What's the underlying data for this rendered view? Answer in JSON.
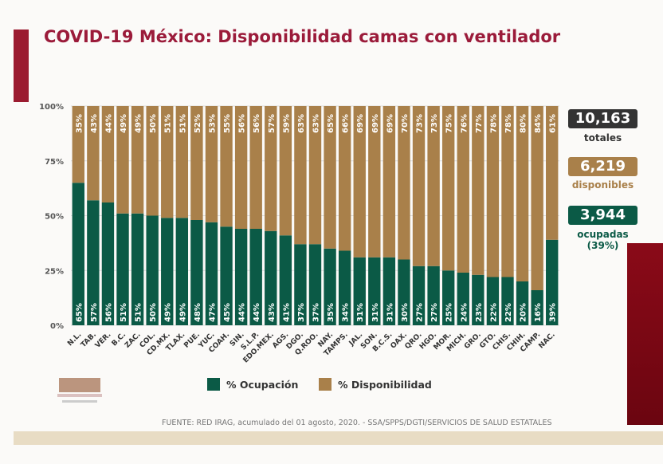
{
  "title": "COVID-19 México: Disponibilidad camas con ventilador",
  "chart_data": {
    "type": "bar",
    "stacked": true,
    "percent": true,
    "categories": [
      "N.L.",
      "TAB.",
      "VER.",
      "B.C.",
      "ZAC.",
      "COL.",
      "CD.MX.",
      "TLAX.",
      "PUE.",
      "YUC.",
      "COAH.",
      "SIN.",
      "S.L.P.",
      "EDO.MEX.",
      "AGS.",
      "DGO.",
      "Q.ROO.",
      "NAY.",
      "TAMPS.",
      "JAL.",
      "SON.",
      "B.C.S.",
      "OAX.",
      "QRO.",
      "HGO.",
      "MOR.",
      "MICH.",
      "GRO.",
      "GTO.",
      "CHIS.",
      "CHIH.",
      "CAMP.",
      "NAC."
    ],
    "series": [
      {
        "name": "% Ocupación",
        "color": "#0b5a46",
        "values": [
          65,
          57,
          56,
          51,
          51,
          50,
          49,
          49,
          48,
          47,
          45,
          44,
          44,
          43,
          41,
          37,
          37,
          35,
          34,
          31,
          31,
          31,
          30,
          27,
          27,
          25,
          24,
          23,
          22,
          22,
          20,
          16,
          39
        ]
      },
      {
        "name": "% Disponibilidad",
        "color": "#a9804a",
        "values": [
          35,
          43,
          44,
          49,
          49,
          50,
          51,
          51,
          52,
          53,
          55,
          56,
          56,
          57,
          59,
          63,
          63,
          65,
          66,
          69,
          69,
          69,
          70,
          73,
          73,
          75,
          76,
          77,
          78,
          78,
          80,
          84,
          61
        ]
      }
    ],
    "yticks": [
      "0%",
      "25%",
      "50%",
      "75%",
      "100%"
    ],
    "ylim": [
      0,
      100
    ],
    "legend_position": "bottom"
  },
  "stats": {
    "total_value": "10,163",
    "total_label": "totales",
    "available_value": "6,219",
    "available_label": "disponibles",
    "occupied_value": "3,944",
    "occupied_label": "ocupadas",
    "occupied_pct": "(39%)"
  },
  "colors": {
    "title": "#9b1b3a",
    "occupied": "#0b5a46",
    "available": "#a9804a",
    "total": "#333333"
  },
  "source": "FUENTE: RED IRAG, acumulado del 01 agosto, 2020. -  SSA/SPPS/DGTI/SERVICIOS DE SALUD ESTATALES"
}
